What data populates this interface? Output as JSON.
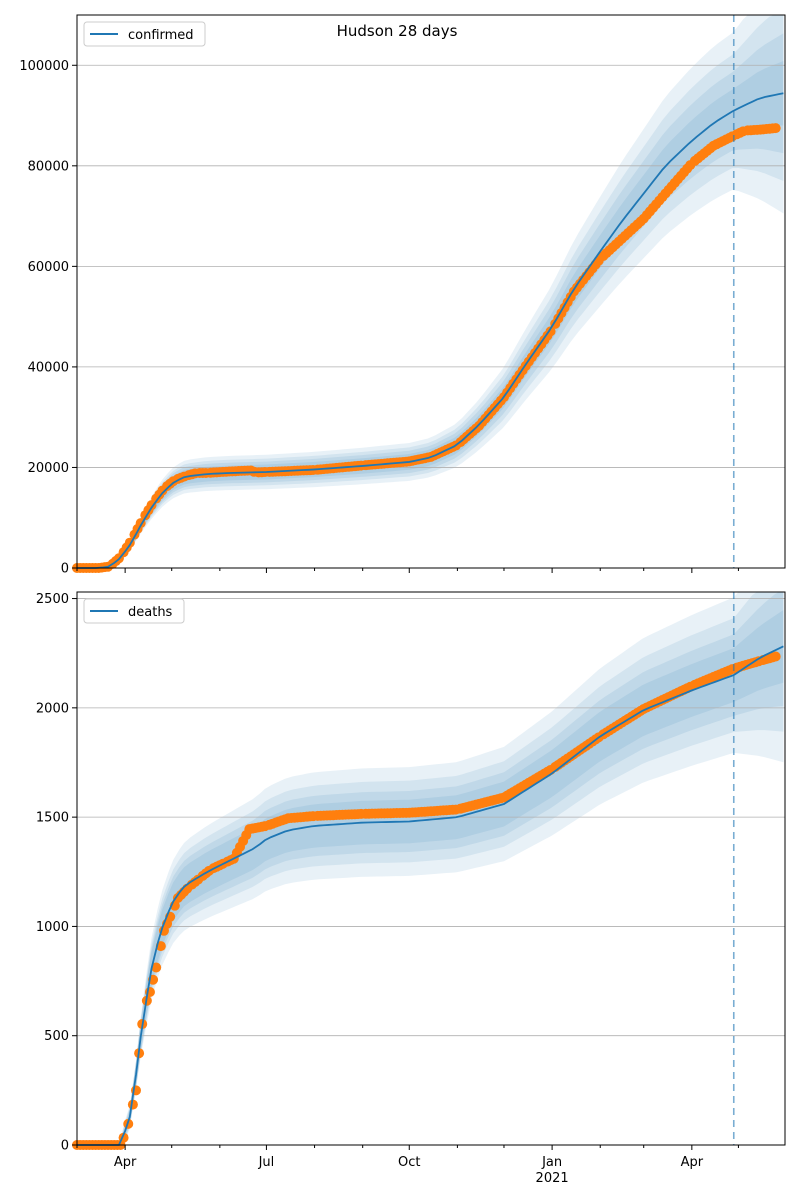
{
  "chart_data": [
    {
      "type": "line",
      "title": "Hudson 28 days",
      "legend": {
        "placement": "top-left",
        "entries": [
          "confirmed"
        ]
      },
      "grid": "horizontal",
      "xlim": [
        "2020-03-01",
        "2021-05-31"
      ],
      "ylim": [
        0,
        110000
      ],
      "yticks": [
        0,
        20000,
        40000,
        60000,
        80000,
        100000
      ],
      "ytick_labels": [
        "0",
        "20000",
        "40000",
        "60000",
        "80000",
        "100000"
      ],
      "vline": "2021-04-28",
      "series": [
        {
          "name": "confirmed",
          "kind": "model",
          "color": "#1f77b4",
          "points": [
            [
              "2020-03-01",
              0
            ],
            [
              "2020-03-15",
              0
            ],
            [
              "2020-03-22",
              300
            ],
            [
              "2020-03-29",
              2000
            ],
            [
              "2020-04-05",
              5000
            ],
            [
              "2020-04-12",
              9000
            ],
            [
              "2020-04-19",
              12500
            ],
            [
              "2020-04-26",
              15300
            ],
            [
              "2020-05-03",
              17200
            ],
            [
              "2020-05-10",
              18200
            ],
            [
              "2020-05-24",
              18700
            ],
            [
              "2020-06-07",
              18900
            ],
            [
              "2020-07-01",
              19100
            ],
            [
              "2020-08-01",
              19600
            ],
            [
              "2020-09-01",
              20300
            ],
            [
              "2020-10-01",
              21100
            ],
            [
              "2020-10-15",
              22000
            ],
            [
              "2020-11-01",
              24500
            ],
            [
              "2020-11-15",
              28500
            ],
            [
              "2020-12-01",
              34000
            ],
            [
              "2020-12-15",
              40500
            ],
            [
              "2021-01-01",
              48000
            ],
            [
              "2021-01-15",
              55500
            ],
            [
              "2021-02-01",
              63000
            ],
            [
              "2021-02-15",
              69000
            ],
            [
              "2021-03-01",
              74500
            ],
            [
              "2021-03-15",
              80000
            ],
            [
              "2021-04-01",
              85000
            ],
            [
              "2021-04-15",
              88500
            ],
            [
              "2021-04-28",
              91000
            ],
            [
              "2021-05-15",
              93500
            ],
            [
              "2021-05-31",
              94500
            ]
          ]
        },
        {
          "name": "",
          "kind": "observed",
          "color": "#ff7f0e",
          "points": [
            [
              "2020-03-01",
              0
            ],
            [
              "2020-03-15",
              0
            ],
            [
              "2020-03-22",
              300
            ],
            [
              "2020-03-29",
              2200
            ],
            [
              "2020-04-05",
              5500
            ],
            [
              "2020-04-12",
              9500
            ],
            [
              "2020-04-19",
              13000
            ],
            [
              "2020-04-26",
              15800
            ],
            [
              "2020-05-03",
              17500
            ],
            [
              "2020-05-10",
              18300
            ],
            [
              "2020-05-17",
              18900
            ],
            [
              "2020-05-24",
              18900
            ],
            [
              "2020-06-07",
              19200
            ],
            [
              "2020-06-21",
              19400
            ],
            [
              "2020-06-24",
              19000
            ],
            [
              "2020-07-01",
              19100
            ],
            [
              "2020-08-01",
              19500
            ],
            [
              "2020-09-01",
              20400
            ],
            [
              "2020-10-01",
              21200
            ],
            [
              "2020-10-15",
              22100
            ],
            [
              "2020-11-01",
              24500
            ],
            [
              "2020-11-15",
              28300
            ],
            [
              "2020-12-01",
              34000
            ],
            [
              "2020-12-15",
              40200
            ],
            [
              "2021-01-01",
              47500
            ],
            [
              "2021-01-15",
              55000
            ],
            [
              "2021-02-01",
              61500
            ],
            [
              "2021-02-15",
              65500
            ],
            [
              "2021-03-01",
              69500
            ],
            [
              "2021-03-15",
              74500
            ],
            [
              "2021-04-01",
              80500
            ],
            [
              "2021-04-15",
              84000
            ],
            [
              "2021-04-28",
              86000
            ],
            [
              "2021-05-05",
              87000
            ],
            [
              "2021-05-15",
              87200
            ],
            [
              "2021-05-25",
              87500
            ]
          ]
        }
      ]
    },
    {
      "type": "line",
      "title": "",
      "legend": {
        "placement": "top-left",
        "entries": [
          "deaths"
        ]
      },
      "grid": "horizontal",
      "xlim": [
        "2020-03-01",
        "2021-05-31"
      ],
      "ylim": [
        0,
        2530
      ],
      "yticks": [
        0,
        500,
        1000,
        1500,
        2000,
        2500
      ],
      "ytick_labels": [
        "0",
        "500",
        "1000",
        "1500",
        "2000",
        "2500"
      ],
      "xticks": [
        "2020-04-01",
        "2020-07-01",
        "2020-10-01",
        "2021-01-01",
        "2021-04-01"
      ],
      "xtick_labels": [
        "Apr",
        "Jul",
        "Oct",
        "Jan",
        "Apr"
      ],
      "xtick_sublabels": [
        "",
        "",
        "",
        "2021",
        ""
      ],
      "vline": "2021-04-28",
      "series": [
        {
          "name": "deaths",
          "kind": "model",
          "color": "#1f77b4",
          "points": [
            [
              "2020-03-01",
              0
            ],
            [
              "2020-03-29",
              0
            ],
            [
              "2020-04-05",
              150
            ],
            [
              "2020-04-12",
              550
            ],
            [
              "2020-04-19",
              850
            ],
            [
              "2020-04-26",
              1020
            ],
            [
              "2020-05-03",
              1130
            ],
            [
              "2020-05-10",
              1190
            ],
            [
              "2020-05-24",
              1250
            ],
            [
              "2020-06-07",
              1300
            ],
            [
              "2020-06-24",
              1360
            ],
            [
              "2020-07-01",
              1400
            ],
            [
              "2020-07-15",
              1440
            ],
            [
              "2020-08-01",
              1460
            ],
            [
              "2020-09-01",
              1475
            ],
            [
              "2020-10-01",
              1480
            ],
            [
              "2020-11-01",
              1500
            ],
            [
              "2020-12-01",
              1560
            ],
            [
              "2021-01-01",
              1700
            ],
            [
              "2021-02-01",
              1870
            ],
            [
              "2021-03-01",
              1990
            ],
            [
              "2021-04-01",
              2080
            ],
            [
              "2021-04-28",
              2150
            ],
            [
              "2021-05-15",
              2230
            ],
            [
              "2021-05-31",
              2285
            ]
          ]
        },
        {
          "name": "",
          "kind": "observed",
          "color": "#ff7f0e",
          "points": [
            [
              "2020-03-01",
              0
            ],
            [
              "2020-03-29",
              0
            ],
            [
              "2020-04-01",
              50
            ],
            [
              "2020-04-04",
              120
            ],
            [
              "2020-04-08",
              250
            ],
            [
              "2020-04-10",
              420
            ],
            [
              "2020-04-13",
              620
            ],
            [
              "2020-04-17",
              700
            ],
            [
              "2020-04-22",
              840
            ],
            [
              "2020-04-26",
              980
            ],
            [
              "2020-05-01",
              1060
            ],
            [
              "2020-05-05",
              1130
            ],
            [
              "2020-05-12",
              1180
            ],
            [
              "2020-05-19",
              1220
            ],
            [
              "2020-05-26",
              1260
            ],
            [
              "2020-06-04",
              1290
            ],
            [
              "2020-06-10",
              1310
            ],
            [
              "2020-06-20",
              1445
            ],
            [
              "2020-07-01",
              1460
            ],
            [
              "2020-07-15",
              1495
            ],
            [
              "2020-08-01",
              1505
            ],
            [
              "2020-09-01",
              1515
            ],
            [
              "2020-10-01",
              1520
            ],
            [
              "2020-11-01",
              1535
            ],
            [
              "2020-12-01",
              1590
            ],
            [
              "2021-01-01",
              1720
            ],
            [
              "2021-02-01",
              1870
            ],
            [
              "2021-03-01",
              1995
            ],
            [
              "2021-04-01",
              2100
            ],
            [
              "2021-04-28",
              2180
            ],
            [
              "2021-05-15",
              2215
            ],
            [
              "2021-05-25",
              2235
            ]
          ]
        }
      ]
    }
  ]
}
